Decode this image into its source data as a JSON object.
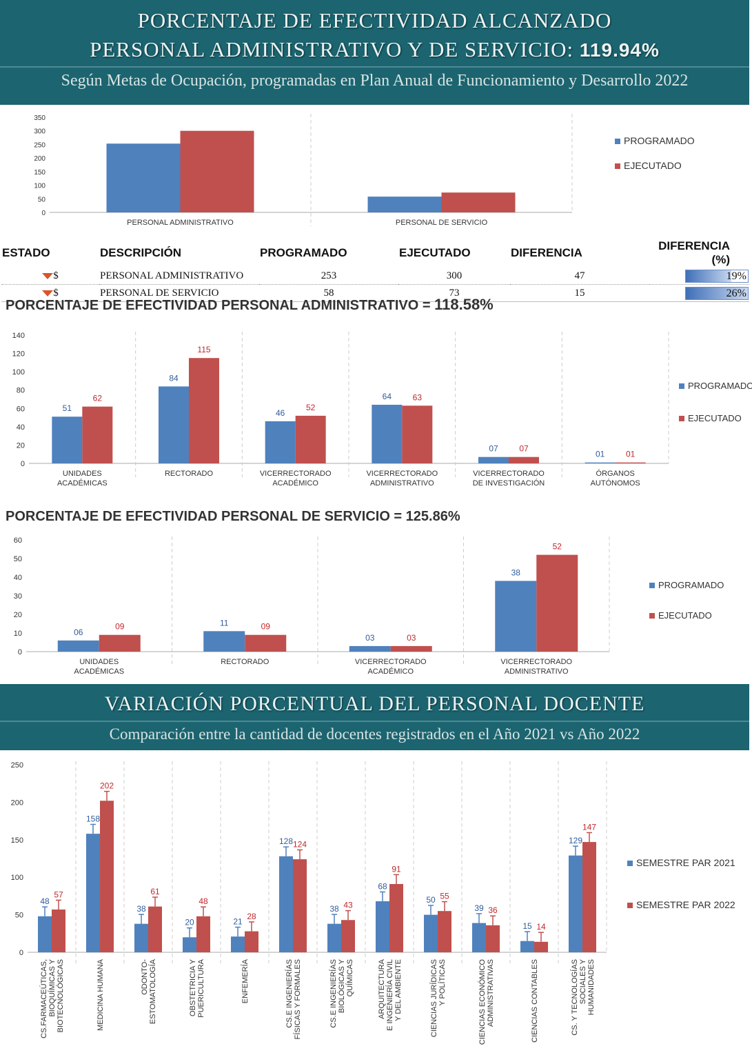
{
  "header1": {
    "line1": "PORCENTAJE  DE  EFECTIVIDAD ALCANZADO",
    "line2": "PERSONAL ADMINISTRATIVO Y DE SERVICIO:",
    "line2_value": "119.94%",
    "subtitle": "Según Metas de Ocupación, programadas en Plan Anual de Funcionamiento y Desarrollo 2022"
  },
  "table": {
    "headers": [
      "ESTADO",
      "DESCRIPCIÓN",
      "PROGRAMADO",
      "EJECUTADO",
      "DIFERENCIA",
      "DIFERENCIA (%)"
    ],
    "status_symbol": "$",
    "rows": [
      {
        "descripcion": "PERSONAL ADMINISTRATIVO",
        "programado": "253",
        "ejecutado": "300",
        "diferencia": "47",
        "diferencia_pct": "19%",
        "pct_value": 19
      },
      {
        "descripcion": "PERSONAL DE SERVICIO",
        "programado": "58",
        "ejecutado": "73",
        "diferencia": "15",
        "diferencia_pct": "26%",
        "pct_value": 26
      }
    ]
  },
  "heading_admin": {
    "text": "PORCENTAJE DE EFECTIVIDAD PERSONAL ADMINISTRATIVO = ",
    "value": "118.58%"
  },
  "heading_serv": {
    "text": "PORCENTAJE DE EFECTIVIDAD PERSONAL DE SERVICIO = ",
    "value": "125.86%"
  },
  "header2": {
    "title": "VARIACIÓN PORCENTUAL DEL PERSONAL  DOCENTE",
    "subtitle": "Comparación entre la cantidad de docentes registrados en el Año 2021 vs Año 2022"
  },
  "colors": {
    "series1": "#4f81bd",
    "series2": "#c0504d",
    "label1": "#2f5d9c",
    "label2": "#c0282d",
    "band": "#1b6470"
  },
  "chart_data": [
    {
      "type": "bar",
      "categories": [
        [
          "PERSONAL ADMINISTRATIVO"
        ],
        [
          "PERSONAL DE SERVICIO"
        ]
      ],
      "series": [
        {
          "name": "PROGRAMADO",
          "values": [
            253,
            58
          ]
        },
        {
          "name": "EJECUTADO",
          "values": [
            300,
            73
          ]
        }
      ],
      "ylim": [
        0,
        350
      ],
      "yticks": [
        0,
        50,
        100,
        150,
        200,
        250,
        300,
        350
      ],
      "data_labels": false,
      "legend": "right",
      "grid": "vertical-dashed"
    },
    {
      "type": "bar",
      "categories": [
        [
          "UNIDADES",
          "ACADÉMICAS"
        ],
        [
          "RECTORADO"
        ],
        [
          "VICERRECTORADO",
          "ACADÉMICO"
        ],
        [
          "VICERRECTORADO",
          "ADMINISTRATIVO"
        ],
        [
          "VICERRECTORADO",
          "DE INVESTIGACIÓN"
        ],
        [
          "ÓRGANOS",
          "AUTÓNOMOS"
        ]
      ],
      "series": [
        {
          "name": "PROGRAMADO",
          "values": [
            51,
            84,
            46,
            64,
            7,
            1
          ],
          "labels": [
            "51",
            "84",
            "46",
            "64",
            "07",
            "01"
          ]
        },
        {
          "name": "EJECUTADO",
          "values": [
            62,
            115,
            52,
            63,
            7,
            1
          ],
          "labels": [
            "62",
            "115",
            "52",
            "63",
            "07",
            "01"
          ]
        }
      ],
      "ylim": [
        0,
        140
      ],
      "yticks": [
        0,
        20,
        40,
        60,
        80,
        100,
        120,
        140
      ],
      "data_labels": true,
      "legend": "right",
      "grid": "vertical-dashed"
    },
    {
      "type": "bar",
      "categories": [
        [
          "UNIDADES",
          "ACADÉMICAS"
        ],
        [
          "RECTORADO"
        ],
        [
          "VICERRECTORADO",
          "ACADÉMICO"
        ],
        [
          "VICERRECTORADO",
          "ADMINISTRATIVO"
        ]
      ],
      "series": [
        {
          "name": "PROGRAMADO",
          "values": [
            6,
            11,
            3,
            38
          ],
          "labels": [
            "06",
            "11",
            "03",
            "38"
          ]
        },
        {
          "name": "EJECUTADO",
          "values": [
            9,
            9,
            3,
            52
          ],
          "labels": [
            "09",
            "09",
            "03",
            "52"
          ]
        }
      ],
      "ylim": [
        0,
        60
      ],
      "yticks": [
        0,
        10,
        20,
        30,
        40,
        50,
        60
      ],
      "data_labels": true,
      "legend": "right",
      "grid": "vertical-dashed"
    },
    {
      "type": "bar",
      "categories": [
        [
          "CS.FARMACEÚTICAS,",
          "BIOQUÍMICAS Y",
          "BIOTECNOLÓGICAS"
        ],
        [
          "MEDICINA HUMANA"
        ],
        [
          "ODONTO-",
          "ESTOMATOLOGÍA"
        ],
        [
          "OBSTETRICIA Y",
          "PUERICULTURA"
        ],
        [
          "ENFEMERÍA"
        ],
        [
          "CS.E INGENIERÍAS",
          "FÍSICAS Y FORMALES"
        ],
        [
          "CS.E INGENIERÍAS",
          "BIOLÓGICAS Y",
          "QUÍMICAS"
        ],
        [
          "ARQUITECTURA",
          "E INGENIERÍA CIVIL",
          "Y DEL AMBIENTE"
        ],
        [
          "CIENCIAS JURÍDICAS",
          "Y POLÍTICAS"
        ],
        [
          "CIENCIAS ECONÓMICO",
          "ADMINISTRATIVAS"
        ],
        [
          "CIENCIAS CONTABLES"
        ],
        [
          "CS. Y TECNOLOGÍAS",
          "SOCIALES Y",
          "HUMANIDADES"
        ]
      ],
      "series": [
        {
          "name": "SEMESTRE PAR 2021",
          "values": [
            48,
            158,
            38,
            20,
            21,
            128,
            38,
            68,
            50,
            39,
            15,
            129
          ]
        },
        {
          "name": "SEMESTRE PAR 2022",
          "values": [
            57,
            202,
            61,
            48,
            28,
            124,
            43,
            91,
            55,
            36,
            14,
            147
          ]
        }
      ],
      "ylim": [
        0,
        250
      ],
      "yticks": [
        0,
        50,
        100,
        150,
        200,
        250
      ],
      "data_labels": true,
      "error_bars": true,
      "legend": "right",
      "grid": "vertical-dashed",
      "rotated_labels": true
    }
  ]
}
